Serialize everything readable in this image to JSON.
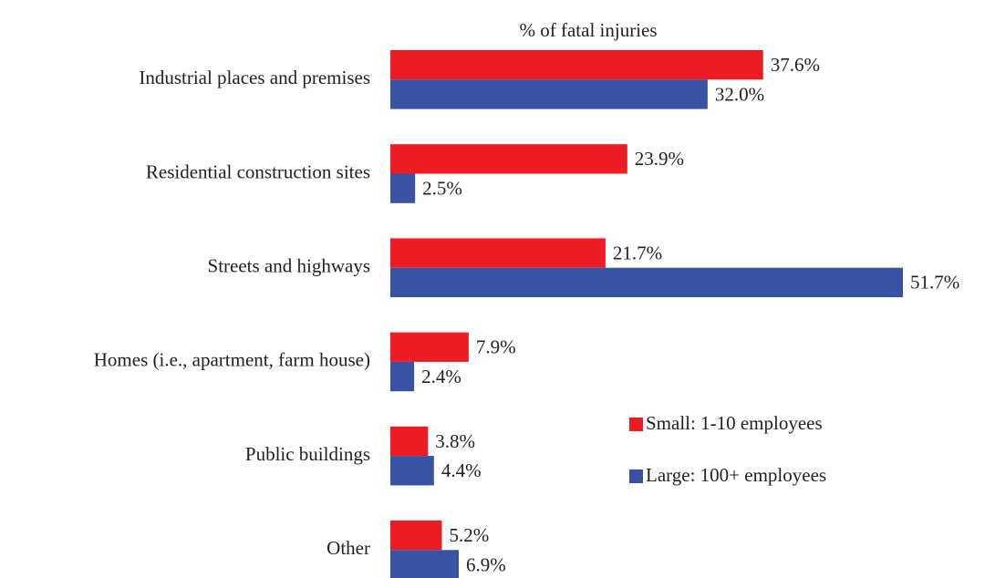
{
  "chart_data": {
    "type": "bar",
    "orientation": "horizontal",
    "title": "% of fatal injuries",
    "categories": [
      "Industrial places and premises",
      "Residential construction sites",
      "Streets and highways",
      "Homes (i.e., apartment, farm house)",
      "Public buildings",
      "Other"
    ],
    "series": [
      {
        "name": "Small: 1-10 employees",
        "color": "#ed1c24",
        "values": [
          37.6,
          23.9,
          21.7,
          7.9,
          3.8,
          5.2
        ],
        "value_labels": [
          "37.6%",
          "23.9%",
          "21.7%",
          "7.9%",
          "3.8%",
          "5.2%"
        ]
      },
      {
        "name": "Large: 100+ employees",
        "color": "#3953a4",
        "values": [
          32.0,
          2.5,
          51.7,
          2.4,
          4.4,
          6.9
        ],
        "value_labels": [
          "32.0%",
          "2.5%",
          "51.7%",
          "2.4%",
          "4.4%",
          "6.9%"
        ]
      }
    ],
    "legend": "lower right"
  }
}
